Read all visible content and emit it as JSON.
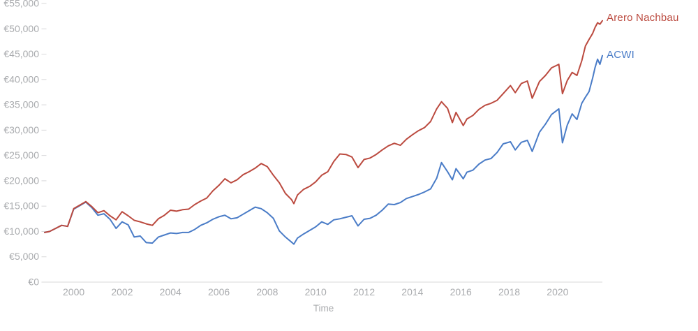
{
  "chart_data": {
    "type": "line",
    "title": "",
    "xlabel": "Time",
    "ylabel": "",
    "xlim": [
      1998.8,
      2021.85
    ],
    "ylim": [
      0,
      55000
    ],
    "x_ticks": [
      2000,
      2002,
      2004,
      2006,
      2008,
      2010,
      2012,
      2014,
      2016,
      2018,
      2020
    ],
    "y_ticks": [
      0,
      5000,
      10000,
      15000,
      20000,
      25000,
      30000,
      35000,
      40000,
      45000,
      50000,
      55000
    ],
    "y_tick_labels": [
      "€0",
      "€5,000",
      "€10,000",
      "€15,000",
      "€20,000",
      "€25,000",
      "€30,000",
      "€35,000",
      "€40,000",
      "€45,000",
      "€50,000",
      "€55,000"
    ],
    "grid": "none",
    "legend": "direct labels at right end of lines",
    "colors": {
      "background": "#ffffff",
      "axis_line": "#d8d8da",
      "axis_label": "#a9abae"
    },
    "x": [
      1998.8,
      1999,
      1999.25,
      1999.5,
      1999.75,
      2000,
      2000.25,
      2000.5,
      2000.75,
      2001,
      2001.25,
      2001.5,
      2001.75,
      2002,
      2002.25,
      2002.5,
      2002.75,
      2003,
      2003.25,
      2003.5,
      2003.75,
      2004,
      2004.25,
      2004.5,
      2004.75,
      2005,
      2005.25,
      2005.5,
      2005.75,
      2006,
      2006.25,
      2006.5,
      2006.75,
      2007,
      2007.25,
      2007.5,
      2007.75,
      2008,
      2008.25,
      2008.5,
      2008.75,
      2009,
      2009.1,
      2009.25,
      2009.5,
      2009.75,
      2010,
      2010.25,
      2010.5,
      2010.75,
      2011,
      2011.25,
      2011.5,
      2011.75,
      2012,
      2012.25,
      2012.5,
      2012.75,
      2013,
      2013.25,
      2013.5,
      2013.75,
      2014,
      2014.25,
      2014.5,
      2014.75,
      2015,
      2015.2,
      2015.45,
      2015.65,
      2015.8,
      2016.1,
      2016.25,
      2016.5,
      2016.75,
      2017,
      2017.25,
      2017.5,
      2017.75,
      2018.05,
      2018.25,
      2018.5,
      2018.75,
      2018.95,
      2019.25,
      2019.5,
      2019.75,
      2020.05,
      2020.2,
      2020.4,
      2020.6,
      2020.8,
      2021,
      2021.15,
      2021.3,
      2021.45,
      2021.55,
      2021.65,
      2021.75,
      2021.85
    ],
    "series": [
      {
        "name": "Arero Nachbau",
        "color": "#bb4a3f",
        "values": [
          9800,
          10000,
          10600,
          11200,
          11000,
          14500,
          15200,
          15900,
          14900,
          13700,
          14100,
          13100,
          12300,
          13900,
          13100,
          12200,
          11900,
          11500,
          11200,
          12500,
          13200,
          14200,
          14000,
          14300,
          14400,
          15300,
          16000,
          16600,
          18000,
          19100,
          20400,
          19600,
          20200,
          21200,
          21800,
          22500,
          23400,
          22800,
          21100,
          19600,
          17500,
          16300,
          15500,
          17200,
          18300,
          18900,
          19800,
          21100,
          21800,
          23800,
          25300,
          25200,
          24700,
          22600,
          24200,
          24500,
          25200,
          26100,
          26900,
          27400,
          27000,
          28200,
          29100,
          29900,
          30500,
          31700,
          34200,
          35600,
          34300,
          31500,
          33500,
          30900,
          32200,
          32900,
          34100,
          34900,
          35300,
          35900,
          37200,
          38800,
          37400,
          39200,
          39700,
          36300,
          39600,
          40800,
          42300,
          43000,
          37200,
          39800,
          41400,
          40800,
          43700,
          46600,
          47900,
          49100,
          50300,
          51200,
          50900,
          51600
        ]
      },
      {
        "name": "ACWI",
        "color": "#4a7cc7",
        "values": [
          9800,
          10000,
          10600,
          11200,
          11000,
          14400,
          15100,
          15800,
          14700,
          13200,
          13500,
          12400,
          10600,
          11900,
          11300,
          8900,
          9100,
          7800,
          7700,
          8900,
          9300,
          9700,
          9600,
          9800,
          9800,
          10400,
          11200,
          11700,
          12400,
          12900,
          13200,
          12500,
          12700,
          13400,
          14100,
          14800,
          14500,
          13700,
          12600,
          10100,
          8900,
          7900,
          7500,
          8700,
          9500,
          10200,
          10900,
          11900,
          11400,
          12300,
          12500,
          12800,
          13100,
          11100,
          12400,
          12600,
          13200,
          14200,
          15400,
          15300,
          15700,
          16500,
          16900,
          17300,
          17800,
          18400,
          20500,
          23600,
          21800,
          20200,
          22400,
          20400,
          21700,
          22100,
          23300,
          24100,
          24400,
          25600,
          27300,
          27700,
          26100,
          27600,
          28000,
          25800,
          29600,
          31200,
          33100,
          34200,
          27500,
          31000,
          33200,
          32100,
          35300,
          36500,
          37600,
          40300,
          42400,
          44000,
          43000,
          44700
        ]
      }
    ]
  }
}
